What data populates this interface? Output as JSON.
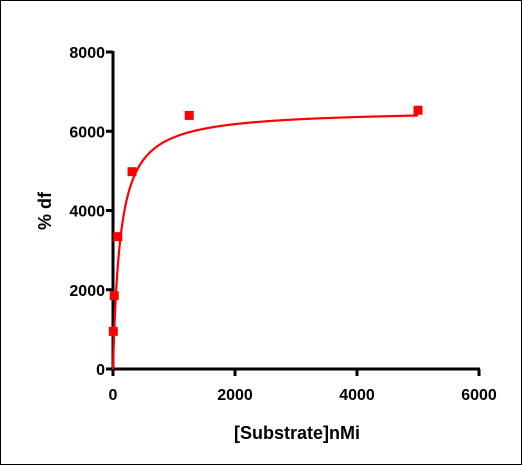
{
  "chart_data": {
    "type": "scatter",
    "title": "",
    "xlabel": "[Substrate]nMi",
    "ylabel": "% df",
    "xlim": [
      0,
      6000
    ],
    "ylim": [
      0,
      8000
    ],
    "x_ticks": [
      0,
      2000,
      4000,
      6000
    ],
    "y_ticks": [
      0,
      2000,
      4000,
      6000,
      8000
    ],
    "x_tick_labels": [
      "0",
      "2000",
      "4000",
      "6000"
    ],
    "y_tick_labels": [
      "0",
      "2000",
      "4000",
      "6000",
      "8000"
    ],
    "grid": false,
    "legend": "none",
    "series": [
      {
        "type": "scatter",
        "marker": "square",
        "color": "#ff0000",
        "points": [
          {
            "x": 5,
            "y": 950
          },
          {
            "x": 20,
            "y": 1850
          },
          {
            "x": 78,
            "y": 3340
          },
          {
            "x": 312,
            "y": 4980
          },
          {
            "x": 1250,
            "y": 6400
          },
          {
            "x": 5000,
            "y": 6530
          }
        ]
      },
      {
        "type": "line",
        "color": "#ff0000",
        "fit": "michaelis-menten",
        "vmax": 6550,
        "km": 120
      }
    ]
  }
}
